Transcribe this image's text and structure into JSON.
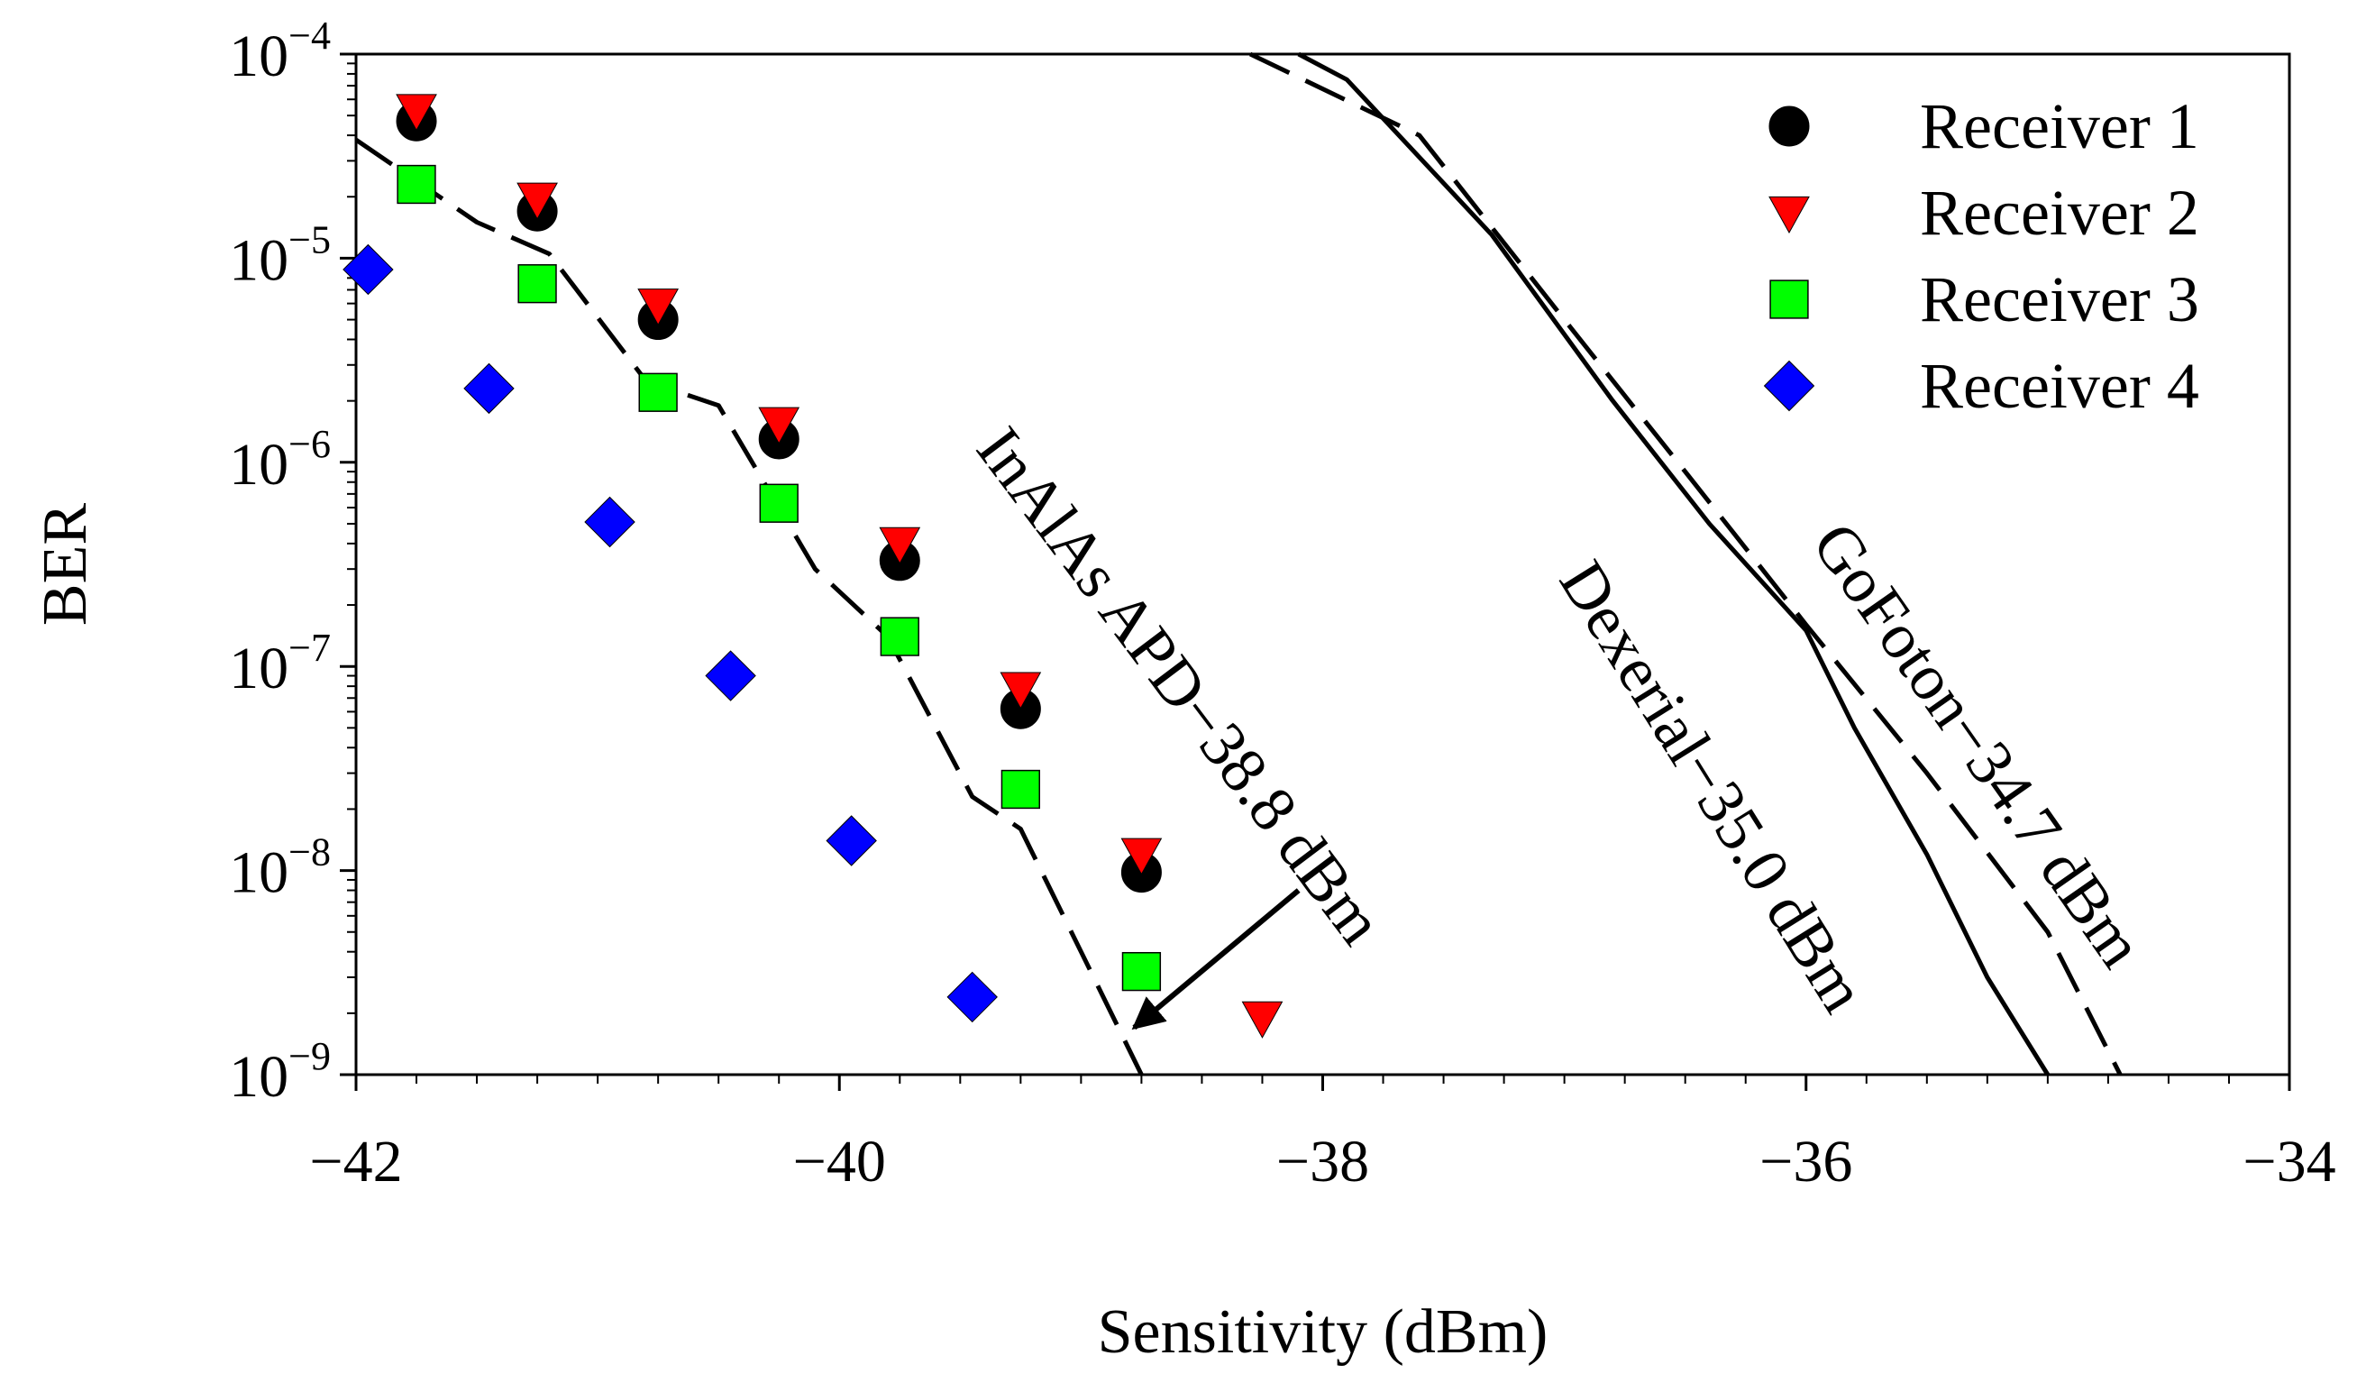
{
  "chart_data": {
    "type": "scatter",
    "title": "",
    "xlabel": "Sensitivity (dBm)",
    "ylabel": "BER",
    "xlim": [
      -42,
      -34
    ],
    "ylim": [
      1e-09,
      0.0001
    ],
    "yscale": "log",
    "grid": false,
    "legend_position": "top-right",
    "x_ticks": [
      {
        "value": -42,
        "label": "−42"
      },
      {
        "value": -40,
        "label": "−40"
      },
      {
        "value": -38,
        "label": "−38"
      },
      {
        "value": -36,
        "label": "−36"
      },
      {
        "value": -34,
        "label": "−34"
      }
    ],
    "y_ticks": [
      {
        "value": 1e-09,
        "base": "10",
        "exp": "−9"
      },
      {
        "value": 1e-08,
        "base": "10",
        "exp": "−8"
      },
      {
        "value": 1e-07,
        "base": "10",
        "exp": "−7"
      },
      {
        "value": 1e-06,
        "base": "10",
        "exp": "−6"
      },
      {
        "value": 1e-05,
        "base": "10",
        "exp": "−5"
      },
      {
        "value": 0.0001,
        "base": "10",
        "exp": "−4"
      }
    ],
    "series": [
      {
        "name": "Receiver 1",
        "marker": "circle",
        "color": "#000000",
        "points": [
          {
            "x": -41.75,
            "y": 4.7e-05
          },
          {
            "x": -41.25,
            "y": 1.7e-05
          },
          {
            "x": -40.75,
            "y": 5e-06
          },
          {
            "x": -40.25,
            "y": 1.3e-06
          },
          {
            "x": -39.75,
            "y": 3.3e-07
          },
          {
            "x": -39.25,
            "y": 6.2e-08
          },
          {
            "x": -38.75,
            "y": 9.8e-09
          }
        ]
      },
      {
        "name": "Receiver 2",
        "marker": "triangle-down",
        "color": "#ff0000",
        "points": [
          {
            "x": -41.75,
            "y": 5.3e-05
          },
          {
            "x": -41.25,
            "y": 1.95e-05
          },
          {
            "x": -40.75,
            "y": 5.9e-06
          },
          {
            "x": -40.25,
            "y": 1.55e-06
          },
          {
            "x": -39.75,
            "y": 4e-07
          },
          {
            "x": -39.25,
            "y": 7.8e-08
          },
          {
            "x": -38.75,
            "y": 1.2e-08
          },
          {
            "x": -38.25,
            "y": 1.9e-09
          }
        ]
      },
      {
        "name": "Receiver 3",
        "marker": "square",
        "color": "#00ff00",
        "points": [
          {
            "x": -41.75,
            "y": 2.3e-05
          },
          {
            "x": -41.25,
            "y": 7.5e-06
          },
          {
            "x": -40.75,
            "y": 2.2e-06
          },
          {
            "x": -40.25,
            "y": 6.3e-07
          },
          {
            "x": -39.75,
            "y": 1.4e-07
          },
          {
            "x": -39.25,
            "y": 2.5e-08
          },
          {
            "x": -38.75,
            "y": 3.2e-09
          }
        ]
      },
      {
        "name": "Receiver 4",
        "marker": "diamond",
        "color": "#0000ff",
        "points": [
          {
            "x": -41.95,
            "y": 8.8e-06
          },
          {
            "x": -41.45,
            "y": 2.3e-06
          },
          {
            "x": -40.95,
            "y": 5.1e-07
          },
          {
            "x": -40.45,
            "y": 9e-08
          },
          {
            "x": -39.95,
            "y": 1.4e-08
          },
          {
            "x": -39.45,
            "y": 2.4e-09
          }
        ]
      }
    ],
    "curves": [
      {
        "label": "InAlAs APD−38.8 dBm",
        "style": "dashed",
        "color": "#000000",
        "points": [
          {
            "x": -42.0,
            "y": 3.8e-05
          },
          {
            "x": -41.5,
            "y": 1.5e-05
          },
          {
            "x": -41.2,
            "y": 1.05e-05
          },
          {
            "x": -40.8,
            "y": 2.5e-06
          },
          {
            "x": -40.5,
            "y": 1.9e-06
          },
          {
            "x": -40.1,
            "y": 3e-07
          },
          {
            "x": -39.8,
            "y": 1.4e-07
          },
          {
            "x": -39.45,
            "y": 2.3e-08
          },
          {
            "x": -39.25,
            "y": 1.6e-08
          },
          {
            "x": -39.0,
            "y": 4e-09
          },
          {
            "x": -38.75,
            "y": 1e-09
          }
        ]
      },
      {
        "label": "GoFoton−34.7 dBm",
        "style": "dashed",
        "color": "#000000",
        "points": [
          {
            "x": -38.3,
            "y": 0.0001
          },
          {
            "x": -37.6,
            "y": 4e-05
          },
          {
            "x": -37.0,
            "y": 5e-06
          },
          {
            "x": -36.5,
            "y": 9e-07
          },
          {
            "x": -36.0,
            "y": 1.6e-07
          },
          {
            "x": -35.5,
            "y": 3e-08
          },
          {
            "x": -35.0,
            "y": 5e-09
          },
          {
            "x": -34.7,
            "y": 1e-09
          }
        ]
      },
      {
        "label": "Dexerial−35.0 dBm",
        "style": "solid",
        "color": "#000000",
        "points": [
          {
            "x": -38.1,
            "y": 0.0001
          },
          {
            "x": -37.9,
            "y": 7.5e-05
          },
          {
            "x": -37.3,
            "y": 1.3e-05
          },
          {
            "x": -36.8,
            "y": 2e-06
          },
          {
            "x": -36.4,
            "y": 5e-07
          },
          {
            "x": -36.0,
            "y": 1.5e-07
          },
          {
            "x": -35.8,
            "y": 5e-08
          },
          {
            "x": -35.5,
            "y": 1.2e-08
          },
          {
            "x": -35.25,
            "y": 3e-09
          },
          {
            "x": -35.0,
            "y": 1e-09
          }
        ]
      }
    ],
    "annotations": [
      {
        "text": "InAlAs APD−38.8 dBm"
      },
      {
        "text": "Dexerial−35.0 dBm"
      },
      {
        "text": "GoFoton−34.7 dBm"
      }
    ],
    "arrow": {
      "from": {
        "x": -38.1,
        "y": 8e-09
      },
      "to": {
        "x": -38.78,
        "y": 1.7e-09
      }
    }
  }
}
